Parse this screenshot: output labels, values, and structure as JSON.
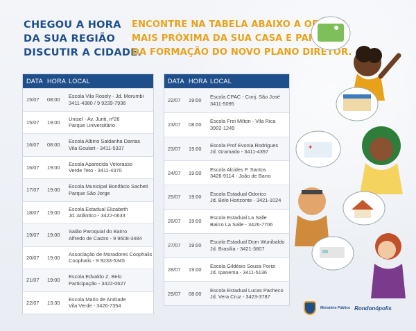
{
  "headline": [
    "CHEGOU A HORA",
    "DA SUA REGIÃO",
    "DISCUTIR A CIDADE."
  ],
  "subheadline": [
    "ENCONTRE NA TABELA ABAIXO A OFICINA",
    "MAIS PRÓXIMA DA SUA CASA E PARTICIPE",
    "DA FORMAÇÃO DO NOVO PLANO DIRETOR."
  ],
  "columns": {
    "date": "DATA",
    "hour": "HORA",
    "local": "LOCAL"
  },
  "table_left": [
    {
      "date": "15/07",
      "hour": "08:00",
      "local": [
        "Escola Vila Rosely - Jd. Morumbi",
        "3411-4380 / 9 9239-7936"
      ]
    },
    {
      "date": "15/07",
      "hour": "19:00",
      "local": [
        "Unisel - Av. Juriti, nº26",
        "Parque Universitário"
      ]
    },
    {
      "date": "16/07",
      "hour": "08:00",
      "local": [
        "Escola Albino Saldanha Dantas",
        "Vila Goulart - 3411-5337"
      ]
    },
    {
      "date": "16/07",
      "hour": "19:00",
      "local": [
        "Escola Aparecida Vetorasso",
        "Verde Teto - 3411-4370"
      ]
    },
    {
      "date": "17/07",
      "hour": "19:00",
      "local": [
        "Escola Municipal Bonifácio Sacheti",
        "Parque São Jorge"
      ]
    },
    {
      "date": "18/07",
      "hour": "19:00",
      "local": [
        "Escola Estadual Elizabeth",
        "Jd. Atlântico - 3422-0633"
      ]
    },
    {
      "date": "19/07",
      "hour": "19:00",
      "local": [
        "Salão Paroquial do Bairro",
        "Alfredo de Castro - 9 9608-3484"
      ]
    },
    {
      "date": "20/07",
      "hour": "19:00",
      "local": [
        "Associação de Moradores Coophalis",
        "Coophalis - 9 9233-5345"
      ]
    },
    {
      "date": "21/07",
      "hour": "19:00",
      "local": [
        "Escola Edvaldo Z. Belo",
        "Participação - 3422-0627"
      ]
    },
    {
      "date": "22/07",
      "hour": "13:30",
      "local": [
        "Escola Mario de Andrade",
        "Vila Verde - 3426-7354"
      ]
    }
  ],
  "table_right": [
    {
      "date": "22/07",
      "hour": "19:00",
      "local": [
        "Escola CPAC - Conj. São José",
        "3411-5095"
      ]
    },
    {
      "date": "23/07",
      "hour": "08:00",
      "local": [
        "Escola Frei Milton - Vila Rica",
        "3902-1249"
      ]
    },
    {
      "date": "23/07",
      "hour": "19:00",
      "local": [
        "Escola Prof Evonia Rodrigues",
        "Jd. Gramado - 3411-4397"
      ]
    },
    {
      "date": "24/07",
      "hour": "19:00",
      "local": [
        "Escola Alcides P. Santos",
        "3426-9114 - João de Barro"
      ]
    },
    {
      "date": "25/07",
      "hour": "19:00",
      "local": [
        "Escola Estadual Odorico",
        "Jd. Belo Horizonte - 3421-1024"
      ]
    },
    {
      "date": "26/07",
      "hour": "19:00",
      "local": [
        "Escola Estadual La Salle",
        "Bairro La Salle - 3426-7706"
      ]
    },
    {
      "date": "27/07",
      "hour": "19:00",
      "local": [
        "Escola Estadual Dom Wunibaldo",
        "Jd. Brasília - 3421-3807"
      ]
    },
    {
      "date": "28/07",
      "hour": "19:00",
      "local": [
        "Escola Gildésio Sousa Porizi",
        "Jd. Ipanema - 3411-5136"
      ]
    },
    {
      "date": "29/07",
      "hour": "08:00",
      "local": [
        "Escola Estadual Lucas Pacheco",
        "Jd. Vera Cruz - 3423-3787"
      ]
    }
  ],
  "logos": {
    "mp_text": "Ministério Público",
    "city": "Rondonópolis"
  },
  "colors": {
    "primary": "#1f4f8a",
    "accent": "#e8a21a"
  }
}
